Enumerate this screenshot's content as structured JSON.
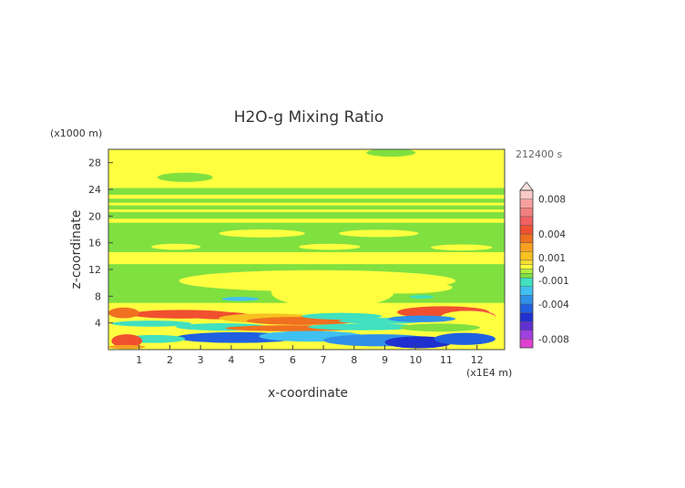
{
  "chart_data": {
    "type": "heatmap",
    "title": "H2O-g Mixing Ratio",
    "xlabel": "x-coordinate",
    "ylabel": "z-coordinate",
    "x_unit": "(x1E4 m)",
    "y_unit": "(x1000 m)",
    "time_label": "212400 s",
    "xlim": [
      0,
      12.9
    ],
    "ylim": [
      0,
      30
    ],
    "x_ticks": [
      1,
      2,
      3,
      4,
      5,
      6,
      7,
      8,
      9,
      10,
      11,
      12
    ],
    "y_ticks": [
      4,
      8,
      12,
      16,
      20,
      24,
      28
    ],
    "colorbar": {
      "levels": [
        -0.009,
        -0.008,
        -0.007,
        -0.006,
        -0.005,
        -0.004,
        -0.003,
        -0.002,
        -0.001,
        -0.0005,
        0,
        0.0005,
        0.001,
        0.002,
        0.003,
        0.004,
        0.005,
        0.006,
        0.007,
        0.008,
        0.009
      ],
      "colors": [
        "#e040d0",
        "#a040e0",
        "#6030d0",
        "#2030d0",
        "#2060e0",
        "#3090e8",
        "#40c0f0",
        "#40e0c0",
        "#80e040",
        "#b0f040",
        "#ffff40",
        "#f8e030",
        "#f8c020",
        "#f8a020",
        "#f07020",
        "#f05030",
        "#f06060",
        "#f08080",
        "#f8a0a0",
        "#fcc8c8"
      ],
      "tick_labels": [
        "0.008",
        "0.004",
        "0.001",
        "0",
        "-0.001",
        "-0.004",
        "-0.008"
      ],
      "tick_values": [
        0.008,
        0.004,
        0.001,
        0,
        -0.001,
        -0.004,
        -0.008
      ]
    },
    "fields": {
      "background": 0.0002,
      "bands": [
        {
          "z0": 28.8,
          "z1": 30,
          "x0": 0,
          "x1": 12.9,
          "value": 0.0002
        },
        {
          "z0": 23.2,
          "z1": 24.2,
          "x0": 0,
          "x1": 12.9,
          "value": -0.0007
        },
        {
          "z0": 22.0,
          "z1": 22.6,
          "x0": 0,
          "x1": 12.9,
          "value": -0.0007
        },
        {
          "z0": 21.0,
          "z1": 21.6,
          "x0": 0,
          "x1": 12.9,
          "value": -0.0007
        },
        {
          "z0": 19.6,
          "z1": 20.6,
          "x0": 0,
          "x1": 12.9,
          "value": -0.0007
        },
        {
          "z0": 14.6,
          "z1": 19.0,
          "x0": 0,
          "x1": 12.9,
          "value": -0.0007
        },
        {
          "z0": 9.0,
          "z1": 12.8,
          "x0": 0,
          "x1": 12.9,
          "value": -0.0007
        },
        {
          "z0": 7.0,
          "z1": 9.0,
          "x0": 0,
          "x1": 12.9,
          "value": -0.0007
        }
      ],
      "blobs": [
        {
          "x": 2.5,
          "z": 25.8,
          "rx": 0.9,
          "rz": 0.7,
          "value": -0.0007
        },
        {
          "x": 9.2,
          "z": 29.5,
          "rx": 0.8,
          "rz": 0.6,
          "value": -0.0007
        },
        {
          "x": 5.0,
          "z": 17.4,
          "rx": 1.4,
          "rz": 0.6,
          "value": 0.0002
        },
        {
          "x": 8.8,
          "z": 17.4,
          "rx": 1.3,
          "rz": 0.55,
          "value": 0.0002
        },
        {
          "x": 2.2,
          "z": 15.4,
          "rx": 0.8,
          "rz": 0.45,
          "value": 0.0002
        },
        {
          "x": 7.2,
          "z": 15.4,
          "rx": 1.0,
          "rz": 0.45,
          "value": 0.0002
        },
        {
          "x": 11.5,
          "z": 15.3,
          "rx": 1.0,
          "rz": 0.45,
          "value": 0.0002
        },
        {
          "x": 6.8,
          "z": 10.3,
          "rx": 4.5,
          "rz": 1.6,
          "value": 0.0002
        },
        {
          "x": 7.3,
          "z": 8.6,
          "rx": 2.0,
          "rz": 2.3,
          "value": 0.0002
        },
        {
          "x": 9.6,
          "z": 9.3,
          "rx": 1.6,
          "rz": 0.9,
          "value": 0.0002
        },
        {
          "x": 4.3,
          "z": 7.6,
          "rx": 0.6,
          "rz": 0.3,
          "value": -0.003
        },
        {
          "x": 10.2,
          "z": 7.9,
          "rx": 0.4,
          "rz": 0.25,
          "value": -0.0012
        },
        {
          "x": 10.9,
          "z": 5.6,
          "rx": 1.5,
          "rz": 0.9,
          "value": 0.0045
        },
        {
          "x": 11.8,
          "z": 5.0,
          "rx": 0.8,
          "rz": 0.9,
          "value": 0.005
        },
        {
          "x": 11.7,
          "z": 4.8,
          "rx": 0.9,
          "rz": 1.0,
          "value": 0.0002
        },
        {
          "x": 2.4,
          "z": 5.3,
          "rx": 1.7,
          "rz": 0.65,
          "value": 0.004
        },
        {
          "x": 3.6,
          "z": 5.1,
          "rx": 1.0,
          "rz": 0.55,
          "value": 0.0045
        },
        {
          "x": 5.2,
          "z": 4.7,
          "rx": 1.6,
          "rz": 0.7,
          "value": 0.001
        },
        {
          "x": 6.3,
          "z": 4.3,
          "rx": 1.8,
          "rz": 0.6,
          "value": 0.0035
        },
        {
          "x": 7.6,
          "z": 5.0,
          "rx": 1.3,
          "rz": 0.5,
          "value": -0.002
        },
        {
          "x": 8.9,
          "z": 4.3,
          "rx": 1.4,
          "rz": 0.45,
          "value": -0.002
        },
        {
          "x": 10.2,
          "z": 4.6,
          "rx": 1.1,
          "rz": 0.5,
          "value": -0.0032
        },
        {
          "x": 1.4,
          "z": 3.9,
          "rx": 1.3,
          "rz": 0.45,
          "value": -0.0015
        },
        {
          "x": 3.7,
          "z": 3.4,
          "rx": 1.5,
          "rz": 0.55,
          "value": -0.002
        },
        {
          "x": 6.0,
          "z": 3.2,
          "rx": 2.2,
          "rz": 0.45,
          "value": 0.0035
        },
        {
          "x": 8.3,
          "z": 3.4,
          "rx": 1.8,
          "rz": 0.5,
          "value": -0.0015
        },
        {
          "x": 10.8,
          "z": 3.3,
          "rx": 1.3,
          "rz": 0.6,
          "value": -0.001
        },
        {
          "x": 4.2,
          "z": 1.8,
          "rx": 2.0,
          "rz": 0.8,
          "value": -0.0045
        },
        {
          "x": 6.6,
          "z": 2.0,
          "rx": 1.7,
          "rz": 0.8,
          "value": -0.003
        },
        {
          "x": 8.8,
          "z": 1.4,
          "rx": 1.8,
          "rz": 0.9,
          "value": -0.0038
        },
        {
          "x": 10.1,
          "z": 1.1,
          "rx": 1.1,
          "rz": 0.9,
          "value": -0.0052
        },
        {
          "x": 11.6,
          "z": 1.6,
          "rx": 1.0,
          "rz": 0.9,
          "value": -0.005
        },
        {
          "x": 1.5,
          "z": 1.6,
          "rx": 1.0,
          "rz": 0.6,
          "value": -0.0012
        },
        {
          "x": 0.6,
          "z": 1.3,
          "rx": 0.5,
          "rz": 1.0,
          "value": 0.0045
        },
        {
          "x": 0.6,
          "z": 0.4,
          "rx": 0.6,
          "rz": 0.3,
          "value": 0.002
        },
        {
          "x": 0.5,
          "z": 5.5,
          "rx": 0.5,
          "rz": 0.8,
          "value": 0.003
        }
      ]
    }
  }
}
